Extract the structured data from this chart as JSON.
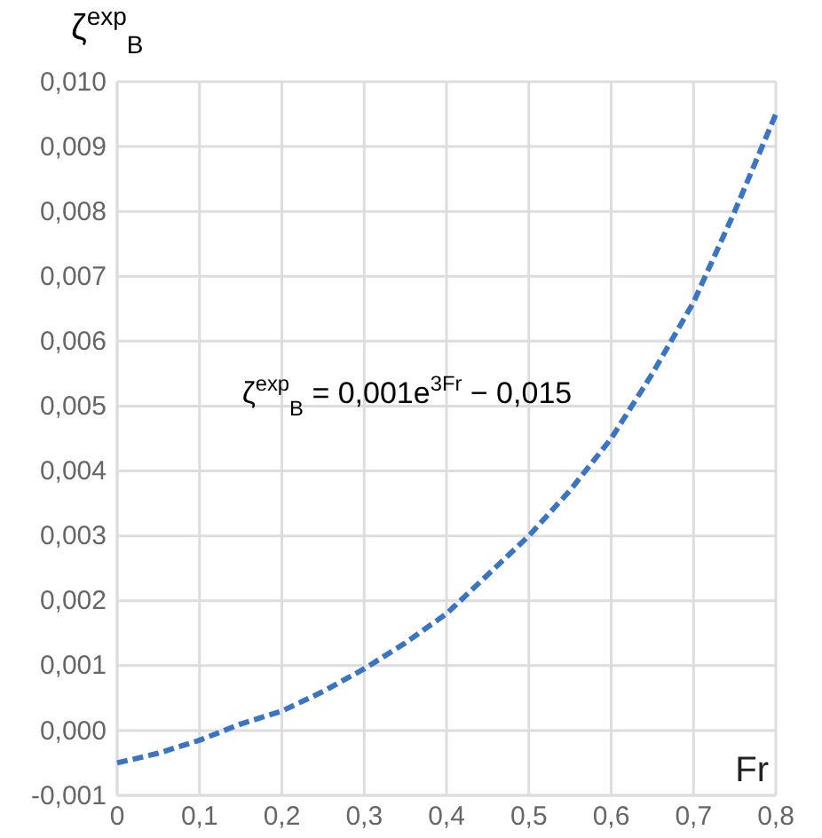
{
  "chart_data": {
    "type": "line",
    "ylabel": "ζ$^{exp}$$_{B}$",
    "xlabel": "Fr",
    "x": [
      0,
      0.05,
      0.1,
      0.15,
      0.2,
      0.25,
      0.3,
      0.35,
      0.4,
      0.45,
      0.5,
      0.55,
      0.6,
      0.65,
      0.7,
      0.75,
      0.8
    ],
    "series": [
      {
        "color": "#3a75c4",
        "values": [
          -0.0005,
          -0.00035,
          -0.00015,
          0.0001,
          0.0003,
          0.0006,
          0.00095,
          0.00135,
          0.0018,
          0.0024,
          0.003,
          0.0037,
          0.0045,
          0.0055,
          0.0066,
          0.008,
          0.0095
        ]
      }
    ],
    "xlim": [
      0,
      0.8
    ],
    "ylim": [
      -0.001,
      0.01
    ],
    "xticks": [
      0,
      {
        "value": 0.1,
        "label": "0,1"
      },
      {
        "value": 0.2,
        "label": "0,2"
      },
      {
        "value": 0.3,
        "label": "0,3"
      },
      {
        "value": 0.4,
        "label": "0,4"
      },
      {
        "value": 0.5,
        "label": "0,5"
      },
      {
        "value": 0.6,
        "label": "0,6"
      },
      {
        "value": 0.7,
        "label": "0,7"
      },
      {
        "value": 0.8,
        "label": "0,8"
      }
    ],
    "yticks": [
      {
        "value": -0.001,
        "label": "-0,001"
      },
      {
        "value": 0,
        "label": "0,000"
      },
      {
        "value": 0.001,
        "label": "0,001"
      },
      {
        "value": 0.002,
        "label": "0,002"
      },
      {
        "value": 0.003,
        "label": "0,003"
      },
      {
        "value": 0.004,
        "label": "0,004"
      },
      {
        "value": 0.005,
        "label": "0,005"
      },
      {
        "value": 0.006,
        "label": "0,006"
      },
      {
        "value": 0.007,
        "label": "0,007"
      },
      {
        "value": 0.008,
        "label": "0,008"
      },
      {
        "value": 0.009,
        "label": "0,009"
      },
      {
        "value": 0.01,
        "label": "0,010"
      }
    ],
    "annotations": [
      "ζ$^{exp}$$_{B}$ = 0,001e$^{3Fr}$ − 0,015"
    ],
    "grid": true,
    "marker": "none",
    "line_style": "dashed"
  }
}
